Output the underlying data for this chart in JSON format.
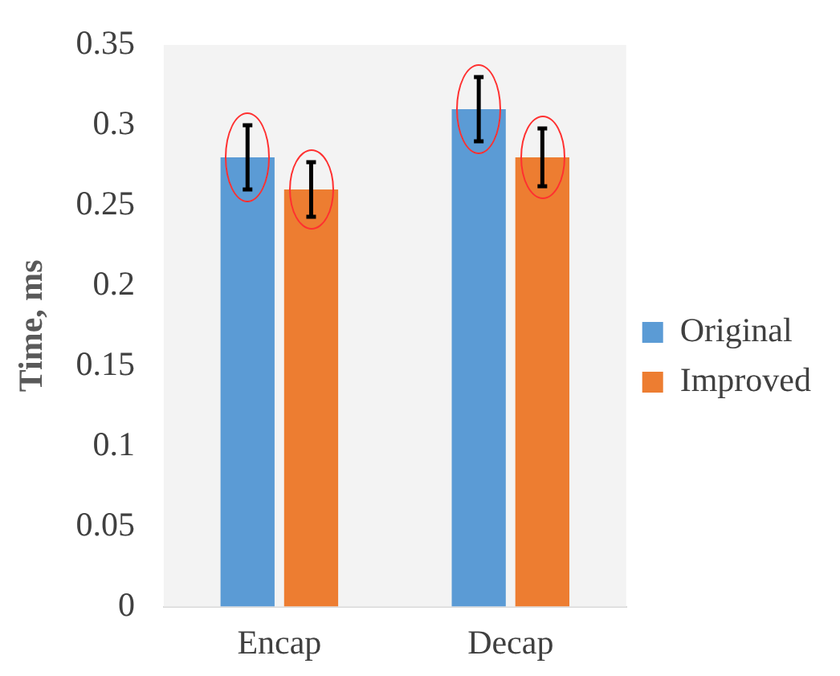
{
  "chart_data": {
    "type": "bar",
    "ylabel": "Time, ms",
    "categories": [
      "Encap",
      "Decap"
    ],
    "series": [
      {
        "name": "Original",
        "color": "#5b9bd5",
        "values": [
          0.28,
          0.31
        ],
        "errors": [
          0.02,
          0.02
        ]
      },
      {
        "name": "Improved",
        "color": "#ed7d31",
        "values": [
          0.26,
          0.28
        ],
        "errors": [
          0.017,
          0.018
        ]
      }
    ],
    "ylim": [
      0,
      0.35
    ],
    "yticks": [
      0,
      0.05,
      0.1,
      0.15,
      0.2,
      0.25,
      0.3,
      0.35
    ],
    "grid": false,
    "legend": "right"
  }
}
